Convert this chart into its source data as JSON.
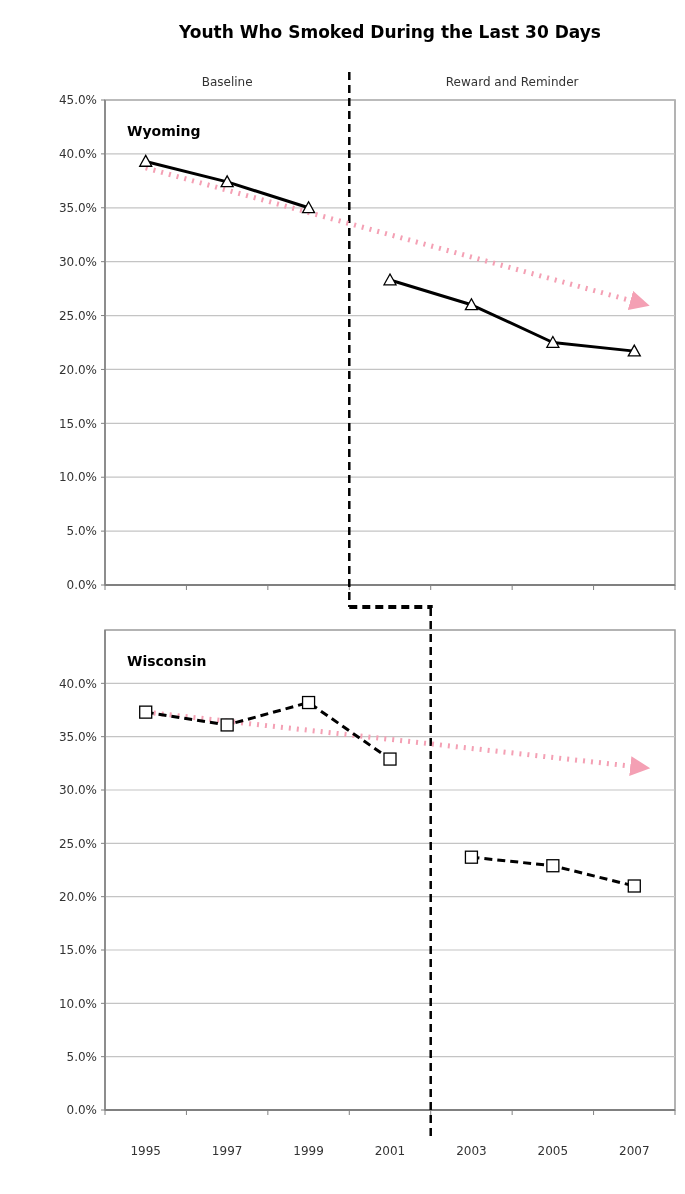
{
  "chart_data": [
    {
      "type": "line",
      "title": "Youth Who Smoked During the Last 30 Days",
      "annotations": [
        "Wyoming",
        "Baseline",
        "Reward and Reminder"
      ],
      "xlim": [
        1994,
        2008
      ],
      "xticks": [
        {
          "value": 1994,
          "label": null
        },
        {
          "value": 1996,
          "label": null
        },
        {
          "value": 1998,
          "label": null
        },
        {
          "value": 2000,
          "label": null
        },
        {
          "value": 2002,
          "label": null
        },
        {
          "value": 2004,
          "label": null
        },
        {
          "value": 2006,
          "label": null
        },
        {
          "value": 2008,
          "label": null
        }
      ],
      "ylim": [
        0,
        45
      ],
      "yticks": [
        {
          "value": 0,
          "label": "0.0%"
        },
        {
          "value": 5,
          "label": "5.0%"
        },
        {
          "value": 10,
          "label": "10.0%"
        },
        {
          "value": 15,
          "label": "15.0%"
        },
        {
          "value": 20,
          "label": "20.0%"
        },
        {
          "value": 25,
          "label": "25.0%"
        },
        {
          "value": 30,
          "label": "30.0%"
        },
        {
          "value": 35,
          "label": "35.0%"
        },
        {
          "value": 40,
          "label": "40.0%"
        },
        {
          "value": 45,
          "label": "45.0%"
        }
      ],
      "tick_labels": "y",
      "grid": "y",
      "ref_lines": [
        {
          "axis": "x",
          "value": 2000,
          "color": "#000000",
          "line_style": "dashed"
        }
      ],
      "series": [
        {
          "color": "#f4a0b4",
          "x": [
            1995,
            2007
          ],
          "values": [
            38.7,
            26.3
          ],
          "line_style": "dotted",
          "marker": "none"
        },
        {
          "color": "#000000",
          "x": [
            1995,
            1997,
            1999
          ],
          "values": [
            39.3,
            37.4,
            35.0
          ],
          "line_style": "solid",
          "marker": "triangle"
        },
        {
          "color": "#000000",
          "x": [
            2001,
            2003,
            2005,
            2007
          ],
          "values": [
            28.3,
            26.0,
            22.5,
            21.7
          ],
          "line_style": "solid",
          "marker": "triangle"
        }
      ]
    },
    {
      "type": "line",
      "annotations": [
        "Wisconsin"
      ],
      "xlim": [
        1994,
        2008
      ],
      "xticks": [
        {
          "value": 1994,
          "label": null
        },
        1995,
        {
          "value": 1996,
          "label": null
        },
        1997,
        {
          "value": 1998,
          "label": null
        },
        1999,
        {
          "value": 2000,
          "label": null
        },
        2001,
        {
          "value": 2002,
          "label": null
        },
        2003,
        {
          "value": 2004,
          "label": null
        },
        2005,
        {
          "value": 2006,
          "label": null
        },
        2007,
        {
          "value": 2008,
          "label": null
        }
      ],
      "ylim": [
        0,
        45
      ],
      "yticks": [
        {
          "value": 0,
          "label": "0.0%"
        },
        {
          "value": 5,
          "label": "5.0%"
        },
        {
          "value": 10,
          "label": "10.0%"
        },
        {
          "value": 15,
          "label": "15.0%"
        },
        {
          "value": 20,
          "label": "20.0%"
        },
        {
          "value": 25,
          "label": "25.0%"
        },
        {
          "value": 30,
          "label": "30.0%"
        },
        {
          "value": 35,
          "label": "35.0%"
        },
        {
          "value": 40,
          "label": "40.0%"
        }
      ],
      "grid": "y",
      "ref_lines": [
        {
          "axis": "x",
          "value": 2002,
          "color": "#000000",
          "line_style": "dashed"
        }
      ],
      "series": [
        {
          "color": "#f4a0b4",
          "x": [
            1995,
            2007
          ],
          "values": [
            37.3,
            32.2
          ],
          "line_style": "dotted",
          "marker": "none"
        },
        {
          "color": "#000000",
          "x": [
            1995,
            1997,
            1999,
            2001
          ],
          "values": [
            37.3,
            36.1,
            38.2,
            32.9
          ],
          "line_style": "dashed",
          "marker": "square"
        },
        {
          "color": "#000000",
          "x": [
            2003,
            2005,
            2007
          ],
          "values": [
            23.7,
            22.9,
            21.0
          ],
          "line_style": "dashed",
          "marker": "square"
        }
      ]
    }
  ]
}
